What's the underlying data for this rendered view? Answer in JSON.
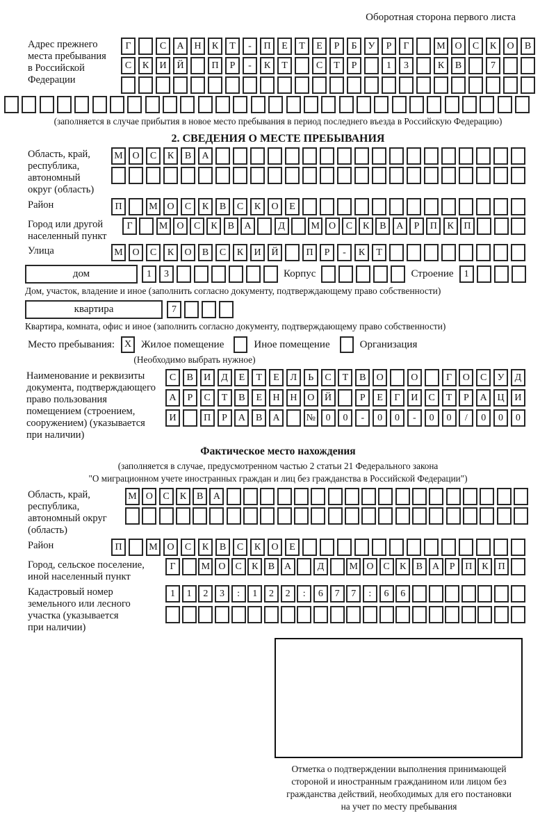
{
  "page": {
    "back_note": "Оборотная сторона первого листа"
  },
  "prev_address": {
    "label_lines": [
      "Адрес прежнего",
      "места пребывания",
      "в Российской",
      "Федерации"
    ],
    "rows": [
      {
        "cells": 24,
        "text": "Г САНКТ-ПЕТЕРБУРГ МОСКОВ"
      },
      {
        "cells": 24,
        "text": "СКИЙ ПР-КТ СТР 13 КВ 7"
      },
      {
        "cells": 24,
        "text": ""
      }
    ],
    "overflow_row": {
      "cells": 30,
      "text": ""
    },
    "note": "(заполняется в случае прибытия в новое место пребывания в период последнего въезда в Российскую Федерацию)"
  },
  "section2": {
    "title": "2. СВЕДЕНИЯ О МЕСТЕ ПРЕБЫВАНИЯ",
    "region": {
      "label_lines": [
        "Область, край,",
        "республика,",
        "автономный",
        "округ (область)"
      ],
      "rows": [
        {
          "cells": 24,
          "text": "МОСКВА"
        },
        {
          "cells": 24,
          "text": ""
        }
      ]
    },
    "district": {
      "label": "Район",
      "row": {
        "cells": 24,
        "text": "П МОСКВСКОЕ"
      }
    },
    "city": {
      "label_lines": [
        "Город или другой",
        "населенный пункт"
      ],
      "row": {
        "cells": 24,
        "text": "Г МОСКВА Д МОСКВАРПКП"
      }
    },
    "street": {
      "label": "Улица",
      "row": {
        "cells": 24,
        "text": "МОСКОВСКИЙ ПР-КТ"
      }
    },
    "house": {
      "box_label": "дом",
      "row": {
        "cells": 8,
        "text": "13"
      },
      "korpus_label": "Корпус",
      "korpus_row": {
        "cells": 5,
        "text": ""
      },
      "stroenie_label": "Строение",
      "stroenie_row": {
        "cells": 4,
        "text": "1"
      },
      "note": "Дом, участок, владение и иное (заполнить согласно документу, подтверждающему право собственности)"
    },
    "apartment": {
      "box_label": "квартира",
      "row": {
        "cells": 4,
        "text": "7"
      },
      "note": "Квартира, комната, офис и иное (заполнить согласно документу, подтверждающему право собственности)"
    },
    "stay_type": {
      "label": "Место пребывания:",
      "options": [
        {
          "label": "Жилое помещение",
          "mark": "X"
        },
        {
          "label": "Иное помещение",
          "mark": ""
        },
        {
          "label": "Организация",
          "mark": ""
        }
      ],
      "note": "(Необходимо выбрать нужное)"
    },
    "doc": {
      "label_lines": [
        "Наименование и реквизиты",
        "документа, подтверждающего",
        "право пользования",
        "помещением (строением,",
        "сооружением) (указывается",
        "при наличии)"
      ],
      "rows": [
        {
          "cells": 21,
          "text": "СВИДЕТЕЛЬСТВО О ГОСУД"
        },
        {
          "cells": 21,
          "text": "АРСТВЕННОЙ РЕГИСТРАЦИ"
        },
        {
          "cells": 21,
          "text": "И ПРАВА №00-00-00/000"
        }
      ]
    }
  },
  "actual_location": {
    "title": "Фактическое место нахождения",
    "note_lines": [
      "(заполняется в случае, предусмотренном частью 2 статьи 21 Федерального закона",
      "\"О миграционном учете иностранных граждан и лиц без гражданства в Российской Федерации\")"
    ],
    "region": {
      "label_lines": [
        "Область, край,",
        "республика,",
        "автономный округ",
        "(область)"
      ],
      "rows": [
        {
          "cells": 24,
          "text": "МОСКВА"
        },
        {
          "cells": 24,
          "text": ""
        }
      ]
    },
    "district": {
      "label": "Район",
      "row": {
        "cells": 24,
        "text": "П МОСКВСКОЕ"
      }
    },
    "city": {
      "label_lines": [
        "Город, сельское поселение,",
        "иной населенный пункт"
      ],
      "row": {
        "cells": 22,
        "text": "Г МОСКВА Д МОСКВАРПКП"
      }
    },
    "cadastre": {
      "label_lines": [
        "Кадастровый номер",
        "земельного или лесного",
        "участка (указывается",
        "при наличии)"
      ],
      "rows": [
        {
          "cells": 22,
          "text": "1123:122:677:66"
        },
        {
          "cells": 22,
          "text": ""
        }
      ]
    },
    "stamp_note_lines": [
      "Отметка о подтверждении выполнения принимающей",
      "стороной и иностранным гражданином или лицом без",
      "гражданства действий, необходимых для его постановки",
      "на учет по месту пребывания"
    ]
  }
}
